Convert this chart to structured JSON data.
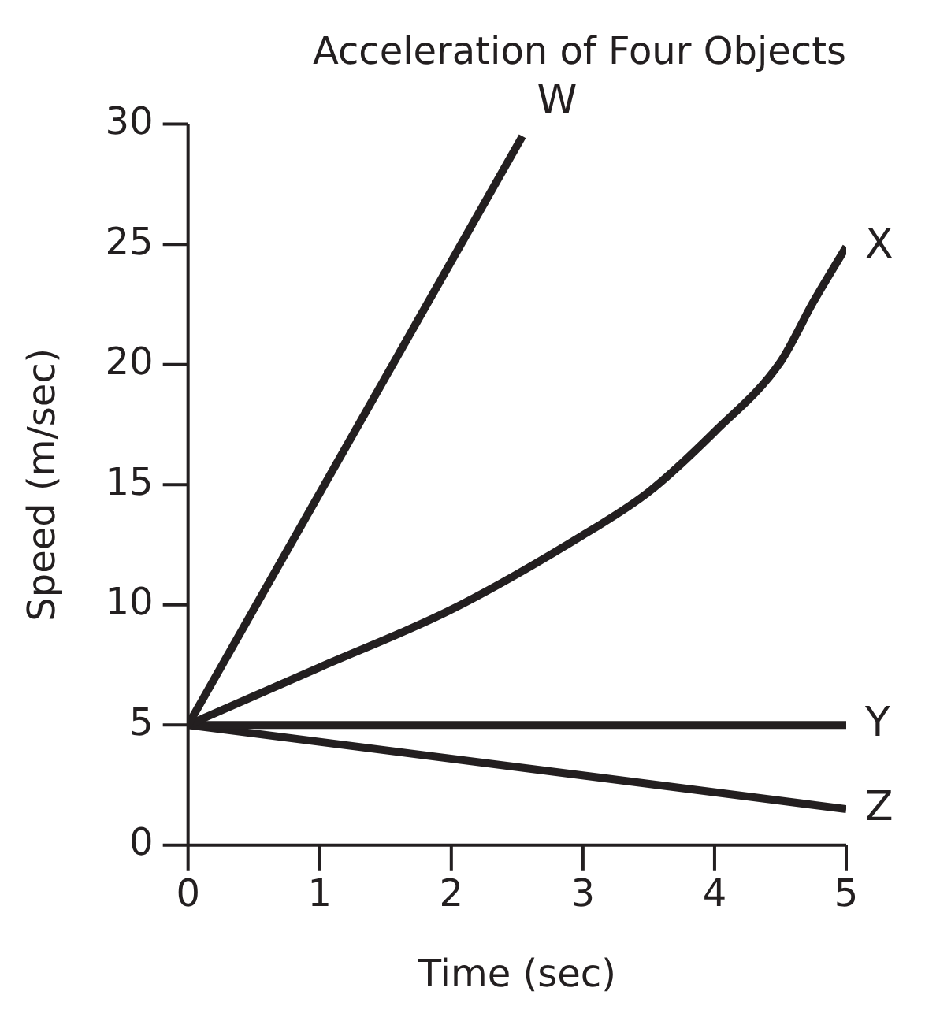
{
  "chart_data": {
    "type": "line",
    "title": "Acceleration of Four Objects",
    "xlabel": "Time (sec)",
    "ylabel": "Speed (m/sec)",
    "xlim": [
      0,
      5
    ],
    "xticks": [
      0,
      1,
      2,
      3,
      4,
      5
    ],
    "ylim": [
      0,
      30
    ],
    "yticks": [
      0,
      5,
      10,
      15,
      20,
      25,
      30
    ],
    "grid": false,
    "legend": false,
    "marker": "none",
    "line_style": "solid",
    "series": [
      {
        "name": "W",
        "color": "#231f20",
        "x": [
          0,
          2.54
        ],
        "values": [
          5,
          29.5
        ]
      },
      {
        "name": "X",
        "color": "#231f20",
        "x": [
          0,
          0.5,
          1,
          2,
          3,
          3.5,
          4,
          4.5,
          4.75,
          5
        ],
        "values": [
          5,
          6.2,
          7.4,
          9.8,
          12.9,
          14.7,
          17.2,
          20.1,
          22.6,
          24.9
        ]
      },
      {
        "name": "Y",
        "color": "#231f20",
        "x": [
          0,
          5
        ],
        "values": [
          5,
          5
        ]
      },
      {
        "name": "Z",
        "color": "#231f20",
        "x": [
          0,
          5
        ],
        "values": [
          5,
          1.5
        ]
      }
    ]
  }
}
